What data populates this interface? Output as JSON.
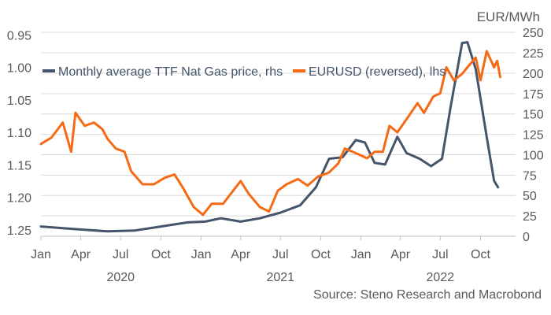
{
  "chart_data": {
    "type": "line",
    "title": "",
    "left_axis": {
      "label": "",
      "reversed": true,
      "ylim": [
        0.94,
        1.26
      ],
      "ticks": [
        "0.95",
        "1.00",
        "1.05",
        "1.10",
        "1.15",
        "1.20",
        "1.25"
      ],
      "tick_values": [
        0.95,
        1.0,
        1.05,
        1.1,
        1.15,
        1.2,
        1.25
      ]
    },
    "right_axis": {
      "label": "EUR/MWh",
      "ylim": [
        0,
        255
      ],
      "ticks": [
        "250",
        "225",
        "200",
        "175",
        "150",
        "125",
        "100",
        "75",
        "50",
        "25",
        "0"
      ],
      "tick_values": [
        250,
        225,
        200,
        175,
        150,
        125,
        100,
        75,
        50,
        25,
        0
      ]
    },
    "x_axis": {
      "xlim": [
        "2020-01-01",
        "2022-12-20"
      ],
      "month_ticks": [
        {
          "date": "2020-01-01",
          "label": "Jan"
        },
        {
          "date": "2020-04-01",
          "label": "Apr"
        },
        {
          "date": "2020-07-01",
          "label": "Jul"
        },
        {
          "date": "2020-10-01",
          "label": "Oct"
        },
        {
          "date": "2021-01-01",
          "label": "Jan"
        },
        {
          "date": "2021-04-01",
          "label": "Apr"
        },
        {
          "date": "2021-07-01",
          "label": "Jul"
        },
        {
          "date": "2021-10-01",
          "label": "Oct"
        },
        {
          "date": "2022-01-01",
          "label": "Jan"
        },
        {
          "date": "2022-04-01",
          "label": "Apr"
        },
        {
          "date": "2022-07-01",
          "label": "Jul"
        },
        {
          "date": "2022-10-01",
          "label": "Oct"
        }
      ],
      "year_labels": [
        {
          "date": "2020-07-01",
          "label": "2020"
        },
        {
          "date": "2021-07-01",
          "label": "2021"
        },
        {
          "date": "2022-07-01",
          "label": "2022"
        }
      ]
    },
    "grid": true,
    "legend_position": "top-left",
    "series": [
      {
        "name": "Monthly average TTF Nat Gas price, rhs",
        "axis": "right",
        "color": "#44546a",
        "points": [
          [
            "2020-01-01",
            12
          ],
          [
            "2020-03-15",
            9
          ],
          [
            "2020-06-01",
            6
          ],
          [
            "2020-08-01",
            7
          ],
          [
            "2020-10-01",
            12
          ],
          [
            "2020-12-01",
            17
          ],
          [
            "2021-01-10",
            18
          ],
          [
            "2021-02-15",
            22
          ],
          [
            "2021-04-01",
            18
          ],
          [
            "2021-05-15",
            22
          ],
          [
            "2021-07-01",
            29
          ],
          [
            "2021-08-15",
            38
          ],
          [
            "2021-09-20",
            60
          ],
          [
            "2021-10-20",
            95
          ],
          [
            "2021-11-20",
            97
          ],
          [
            "2021-12-20",
            118
          ],
          [
            "2022-01-10",
            115
          ],
          [
            "2022-02-01",
            90
          ],
          [
            "2022-02-25",
            88
          ],
          [
            "2022-03-25",
            122
          ],
          [
            "2022-04-15",
            102
          ],
          [
            "2022-05-15",
            95
          ],
          [
            "2022-06-10",
            86
          ],
          [
            "2022-07-05",
            95
          ],
          [
            "2022-07-25",
            160
          ],
          [
            "2022-08-20",
            237
          ],
          [
            "2022-09-01",
            238
          ],
          [
            "2022-09-20",
            205
          ],
          [
            "2022-10-15",
            122
          ],
          [
            "2022-11-01",
            68
          ],
          [
            "2022-11-10",
            60
          ]
        ]
      },
      {
        "name": "EURUSD (reversed), lhs",
        "axis": "left",
        "color": "#f56a14",
        "points": [
          [
            "2020-01-01",
            1.118
          ],
          [
            "2020-01-25",
            1.108
          ],
          [
            "2020-02-20",
            1.085
          ],
          [
            "2020-03-10",
            1.13
          ],
          [
            "2020-03-20",
            1.07
          ],
          [
            "2020-04-10",
            1.09
          ],
          [
            "2020-05-01",
            1.085
          ],
          [
            "2020-05-20",
            1.095
          ],
          [
            "2020-06-01",
            1.11
          ],
          [
            "2020-06-20",
            1.125
          ],
          [
            "2020-07-10",
            1.13
          ],
          [
            "2020-07-25",
            1.16
          ],
          [
            "2020-08-20",
            1.18
          ],
          [
            "2020-09-15",
            1.18
          ],
          [
            "2020-10-10",
            1.17
          ],
          [
            "2020-11-01",
            1.165
          ],
          [
            "2020-11-20",
            1.185
          ],
          [
            "2020-12-15",
            1.215
          ],
          [
            "2021-01-05",
            1.227
          ],
          [
            "2021-01-25",
            1.21
          ],
          [
            "2021-02-20",
            1.21
          ],
          [
            "2021-03-15",
            1.19
          ],
          [
            "2021-04-01",
            1.175
          ],
          [
            "2021-04-20",
            1.195
          ],
          [
            "2021-05-15",
            1.215
          ],
          [
            "2021-06-05",
            1.222
          ],
          [
            "2021-06-25",
            1.19
          ],
          [
            "2021-07-15",
            1.18
          ],
          [
            "2021-08-10",
            1.172
          ],
          [
            "2021-09-01",
            1.182
          ],
          [
            "2021-09-25",
            1.168
          ],
          [
            "2021-10-20",
            1.162
          ],
          [
            "2021-11-10",
            1.148
          ],
          [
            "2021-11-25",
            1.125
          ],
          [
            "2021-12-20",
            1.132
          ],
          [
            "2022-01-15",
            1.14
          ],
          [
            "2022-02-01",
            1.13
          ],
          [
            "2022-02-20",
            1.13
          ],
          [
            "2022-03-07",
            1.09
          ],
          [
            "2022-03-25",
            1.1
          ],
          [
            "2022-04-20",
            1.075
          ],
          [
            "2022-05-10",
            1.055
          ],
          [
            "2022-05-25",
            1.07
          ],
          [
            "2022-06-15",
            1.045
          ],
          [
            "2022-07-01",
            1.04
          ],
          [
            "2022-07-15",
            1.0
          ],
          [
            "2022-08-01",
            1.02
          ],
          [
            "2022-08-20",
            1.01
          ],
          [
            "2022-09-01",
            1.0
          ],
          [
            "2022-09-20",
            0.985
          ],
          [
            "2022-10-01",
            1.02
          ],
          [
            "2022-10-15",
            0.975
          ],
          [
            "2022-11-01",
            1.0
          ],
          [
            "2022-11-08",
            0.99
          ],
          [
            "2022-11-15",
            1.015
          ]
        ]
      }
    ],
    "source": "Source: Steno Research and Macrobond"
  }
}
